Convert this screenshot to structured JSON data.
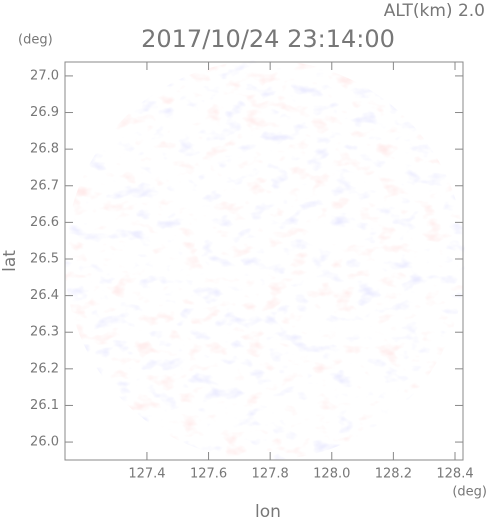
{
  "chart_data": {
    "type": "radar-ppi",
    "title": "2017/10/24 23:14:00",
    "annotation": "ALT(km) 2.0",
    "x_label": "lon",
    "y_label": "lat",
    "x_unit": "(deg)",
    "y_unit": "(deg)",
    "xlim": [
      127.134,
      128.426
    ],
    "ylim": [
      25.951,
      27.038
    ],
    "xticks": [
      127.4,
      127.6,
      127.8,
      {
        "value": 128.0,
        "label": "128.0"
      },
      128.2,
      128.4
    ],
    "yticks": [
      {
        "value": 26.0,
        "label": "26.0"
      },
      26.1,
      26.2,
      26.3,
      26.4,
      26.5,
      26.6,
      26.7,
      26.8,
      26.9,
      {
        "value": 27.0,
        "label": "27.0"
      }
    ]
  }
}
